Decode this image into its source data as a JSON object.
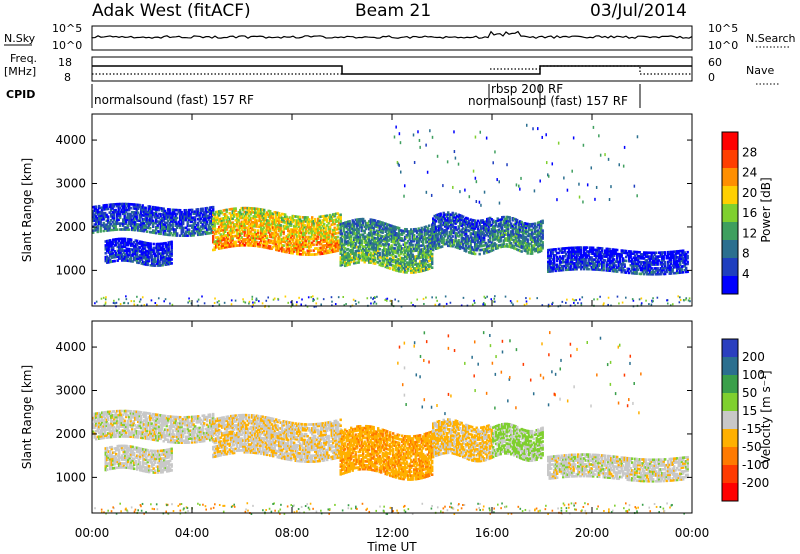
{
  "header": {
    "station": "Adak West (fitACF)",
    "beam": "Beam 21",
    "date": "03/Jul/2014"
  },
  "side_labels": {
    "nsky": "N.Sky",
    "nsearch": "N.Search",
    "freq_line1": "Freq.",
    "freq_line2": "[MHz]",
    "nave": "Nave",
    "cpid": "CPID"
  },
  "cpid_labels": {
    "main": "normalsound (fast) 157 RF",
    "rbsp": "rbsp 200 RF",
    "main2": "normalsound (fast) 157 RF"
  },
  "noise_axis": {
    "ticks_left": [
      "10^5",
      "10^0"
    ],
    "ticks_right": [
      "10^5",
      "10^0"
    ]
  },
  "freq_axis": {
    "ticks_left": [
      "18",
      "8"
    ],
    "ticks_right": [
      "60",
      "0"
    ]
  },
  "colors": {
    "power_scale": [
      "#0000ff",
      "#1f3fbf",
      "#2b6f8f",
      "#3f9f5f",
      "#7fcf2f",
      "#ffcf00",
      "#ff8f00",
      "#ff3f00",
      "#ff0000"
    ],
    "velocity_scale": [
      "#2a3fbf",
      "#2b6f8f",
      "#3a9f4a",
      "#7fcf2f",
      "#c8c8c8",
      "#ffb000",
      "#ff7a00",
      "#ff3a00",
      "#ff0000"
    ],
    "ground_scatter": "#c8c8c8"
  },
  "chart_data": {
    "type": "heatmap",
    "xlabel": "Time UT",
    "x_ticks": [
      "00:00",
      "04:00",
      "08:00",
      "12:00",
      "16:00",
      "20:00",
      "00:00"
    ],
    "x_range_hours": [
      0,
      24
    ],
    "panels": [
      {
        "name": "power",
        "ylabel": "Slant Range [km]",
        "y_ticks": [
          1000,
          2000,
          3000,
          4000
        ],
        "y_range_km": [
          180,
          4600
        ],
        "colorbar_label": "Power [dB]",
        "colorbar_ticks": [
          "4",
          "8",
          "12",
          "16",
          "20",
          "24",
          "28"
        ],
        "colorbar_range": [
          0,
          30
        ]
      },
      {
        "name": "velocity",
        "ylabel": "Slant Range [km]",
        "y_ticks": [
          1000,
          2000,
          3000,
          4000
        ],
        "y_range_km": [
          180,
          4600
        ],
        "colorbar_label": "Velocity [m s⁻¹]",
        "colorbar_ticks": [
          "200",
          "100",
          "50",
          "15",
          "-15",
          "-50",
          "-100",
          "-200"
        ],
        "colorbar_range": [
          -250,
          250
        ]
      }
    ],
    "scatter_bands": [
      {
        "t0": 0.0,
        "t1": 4.8,
        "r_lo": 1900,
        "r_hi": 2500,
        "power": 8,
        "velocity": 0
      },
      {
        "t0": 0.5,
        "t1": 3.2,
        "r_lo": 1200,
        "r_hi": 1700,
        "power": 6,
        "velocity": 0
      },
      {
        "t0": 4.8,
        "t1": 9.9,
        "r_lo": 1500,
        "r_hi": 2400,
        "power": 22,
        "velocity": -10
      },
      {
        "t0": 9.9,
        "t1": 13.6,
        "r_lo": 1100,
        "r_hi": 2100,
        "power": 14,
        "velocity": -40
      },
      {
        "t0": 13.6,
        "t1": 16.0,
        "r_lo": 1500,
        "r_hi": 2300,
        "power": 10,
        "velocity": -20
      },
      {
        "t0": 16.0,
        "t1": 18.0,
        "r_lo": 1500,
        "r_hi": 2200,
        "power": 12,
        "velocity": 20
      },
      {
        "t0": 18.2,
        "t1": 23.8,
        "r_lo": 1000,
        "r_hi": 1500,
        "power": 6,
        "velocity": 0
      }
    ]
  }
}
